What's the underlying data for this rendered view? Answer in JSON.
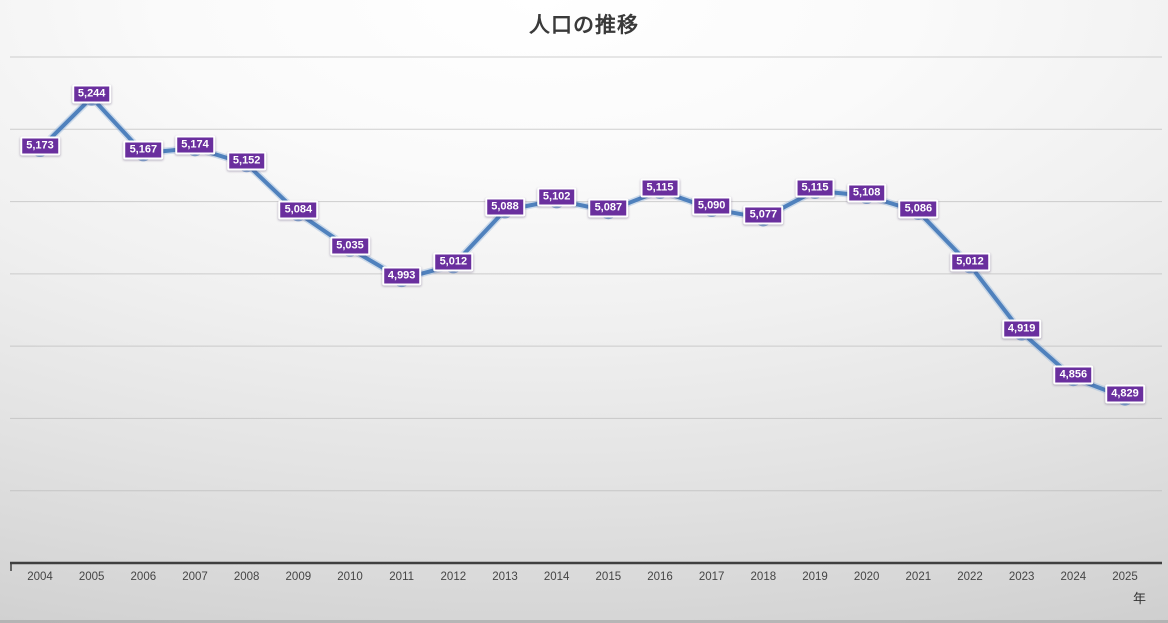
{
  "chart_data": {
    "type": "line",
    "title": "人口の推移",
    "xlabel": "年",
    "ylabel": "",
    "categories": [
      "2004",
      "2005",
      "2006",
      "2007",
      "2008",
      "2009",
      "2010",
      "2011",
      "2012",
      "2013",
      "2014",
      "2015",
      "2016",
      "2017",
      "2018",
      "2019",
      "2020",
      "2021",
      "2022",
      "2023",
      "2024",
      "2025"
    ],
    "values": [
      5173,
      5244,
      5167,
      5174,
      5152,
      5084,
      5035,
      4993,
      5012,
      5088,
      5102,
      5087,
      5115,
      5090,
      5077,
      5115,
      5108,
      5086,
      5012,
      4919,
      4856,
      4829
    ],
    "point_labels": [
      "5,173",
      "5,244",
      "5,167",
      "5,174",
      "5,152",
      "5,084",
      "5,035",
      "4,993",
      "5,012",
      "5,088",
      "5,102",
      "5,087",
      "5,115",
      "5,090",
      "5,077",
      "5,115",
      "5,108",
      "5,086",
      "5,012",
      "4,919",
      "4,856",
      "4,829"
    ],
    "ylim": [
      4600,
      5300
    ],
    "grid_step": 100,
    "grid": "horizontal",
    "legend": "none",
    "y_tick_labels_visible": false,
    "colors": {
      "line": "#4f81bd",
      "line_glow": "#9ab7dc",
      "marker": "#4a7dbb",
      "marker_rim": "#88abd6",
      "label_bg": "#6a2f9e",
      "label_border": "#ffffff",
      "label_text": "#ffffff",
      "gridline": "#b8b8b8",
      "axis": "#3f3f3f",
      "tick_text": "#454545",
      "title_text": "#3a3a3a"
    }
  }
}
